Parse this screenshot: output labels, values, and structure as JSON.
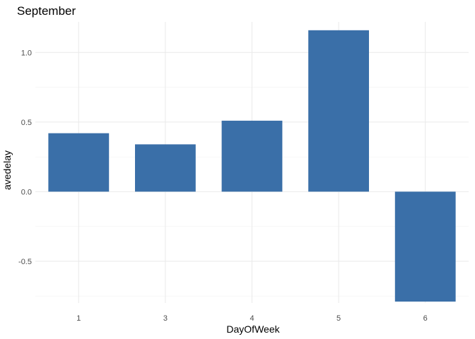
{
  "chart_data": {
    "type": "bar",
    "title": "September",
    "xlabel": "DayOfWeek",
    "ylabel": "avedelay",
    "categories": [
      "1",
      "3",
      "4",
      "5",
      "6"
    ],
    "values": [
      0.42,
      0.34,
      0.51,
      1.16,
      -0.79
    ],
    "ylim": [
      -0.8,
      1.22
    ],
    "yticks": [
      -0.5,
      0.0,
      0.5,
      1.0
    ],
    "ytick_labels": [
      "-0.5",
      "0.0",
      "0.5",
      "1.0"
    ],
    "grid": true,
    "bar_color": "#3a6fa8",
    "legend": "none"
  }
}
